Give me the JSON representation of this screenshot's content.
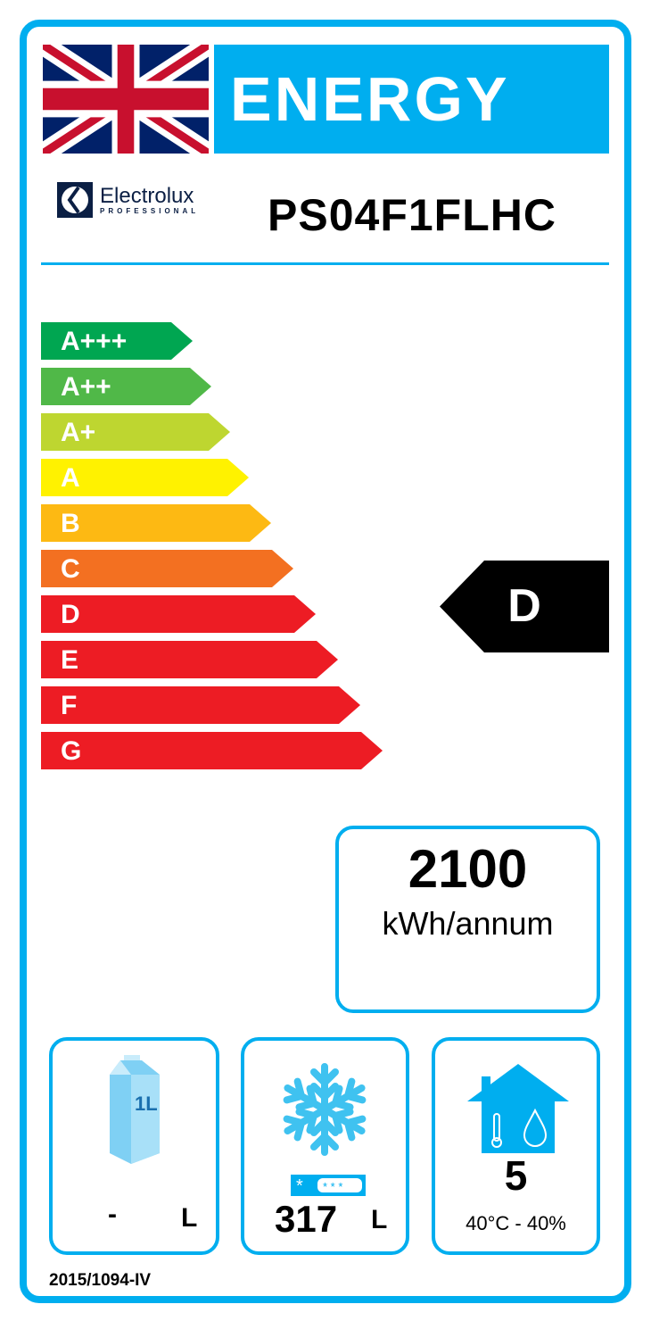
{
  "header": {
    "title": "ENERGY",
    "flag": "union-jack-icon"
  },
  "brand": {
    "name": "Electrolux",
    "sub": "PROFESSIONAL"
  },
  "model": "PS04F1FLHC",
  "classes": [
    {
      "label": "A+++",
      "color": "#00a651"
    },
    {
      "label": "A++",
      "color": "#50b848"
    },
    {
      "label": "A+",
      "color": "#bed630"
    },
    {
      "label": "A",
      "color": "#fff200"
    },
    {
      "label": "B",
      "color": "#fdb913"
    },
    {
      "label": "C",
      "color": "#f37021"
    },
    {
      "label": "D",
      "color": "#ed1c24"
    },
    {
      "label": "E",
      "color": "#ed1c24"
    },
    {
      "label": "F",
      "color": "#ed1c24"
    },
    {
      "label": "G",
      "color": "#ed1c24"
    }
  ],
  "rating": "D",
  "consumption": {
    "value": "2100",
    "unit": "kWh/annum"
  },
  "chilled": {
    "value": "-",
    "unit": "L",
    "icon_text": "1L"
  },
  "frozen": {
    "value": "317",
    "unit": "L"
  },
  "climate": {
    "class": "5",
    "conditions": "40°C - 40%"
  },
  "regulation": "2015/1094-IV",
  "accent": "#00aeef"
}
